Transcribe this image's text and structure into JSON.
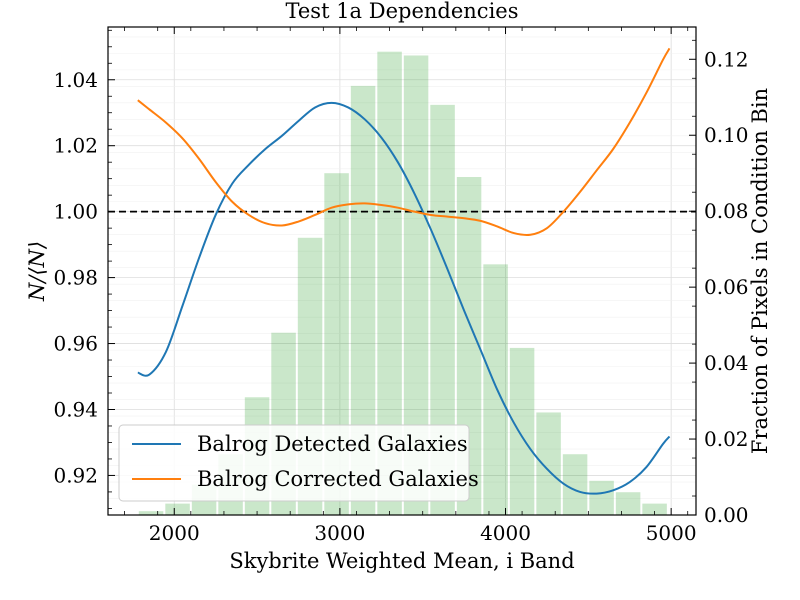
{
  "chart_data": {
    "type": "line",
    "title": "Test 1a Dependencies",
    "xlabel": "Skybrite Weighted Mean, i Band",
    "ylabel": "N/⟨N⟩",
    "ylabel_right": "Fraction of Pixels in Condition Bin",
    "xlim": [
      1600,
      5150
    ],
    "ylim": [
      0.908,
      1.056
    ],
    "ylim_right": [
      0.0,
      0.1285
    ],
    "x_ticks": [
      2000,
      3000,
      4000,
      5000
    ],
    "y_ticks": [
      0.92,
      0.94,
      0.96,
      0.98,
      1.0,
      1.02,
      1.04
    ],
    "y_ticks_right": [
      0.0,
      0.02,
      0.04,
      0.06,
      0.08,
      0.1,
      0.12
    ],
    "x_tick_labels": [
      "2000",
      "3000",
      "4000",
      "5000"
    ],
    "y_tick_labels": [
      "0.92",
      "0.94",
      "0.96",
      "0.98",
      "1.00",
      "1.02",
      "1.04"
    ],
    "y_tick_labels_right": [
      "0.00",
      "0.02",
      "0.04",
      "0.06",
      "0.08",
      "0.10",
      "0.12"
    ],
    "grid": true,
    "reference_line": {
      "y": 1.0,
      "style": "dashed",
      "color": "#000000"
    },
    "legend_position": "lower-left",
    "series": [
      {
        "name": "Balrog Detected Galaxies",
        "color": "#1f77b4",
        "x": [
          1780,
          1850,
          1950,
          2050,
          2150,
          2250,
          2350,
          2450,
          2550,
          2650,
          2750,
          2850,
          2950,
          3050,
          3150,
          3250,
          3350,
          3450,
          3550,
          3650,
          3750,
          3850,
          3950,
          4050,
          4150,
          4250,
          4350,
          4450,
          4550,
          4650,
          4750,
          4850,
          4950,
          4990
        ],
        "y": [
          0.9512,
          0.9506,
          0.9575,
          0.9715,
          0.986,
          0.999,
          1.0085,
          1.0142,
          1.019,
          1.023,
          1.0275,
          1.0316,
          1.033,
          1.0316,
          1.028,
          1.0225,
          1.015,
          1.0055,
          0.9945,
          0.9825,
          0.97,
          0.958,
          0.946,
          0.936,
          0.928,
          0.922,
          0.9175,
          0.915,
          0.9145,
          0.9155,
          0.918,
          0.9225,
          0.9295,
          0.9318
        ]
      },
      {
        "name": "Balrog Corrected Galaxies",
        "color": "#ff7f0e",
        "x": [
          1780,
          1850,
          1950,
          2050,
          2150,
          2250,
          2350,
          2450,
          2550,
          2650,
          2750,
          2850,
          2950,
          3050,
          3150,
          3250,
          3350,
          3450,
          3550,
          3650,
          3750,
          3850,
          3950,
          4050,
          4150,
          4250,
          4350,
          4450,
          4550,
          4650,
          4750,
          4850,
          4950,
          4990
        ],
        "y": [
          1.0338,
          1.031,
          1.027,
          1.0222,
          1.016,
          1.009,
          1.003,
          0.999,
          0.9965,
          0.9958,
          0.997,
          0.999,
          1.0012,
          1.0022,
          1.0025,
          1.002,
          1.0012,
          1.0,
          0.999,
          0.9985,
          0.998,
          0.9972,
          0.9955,
          0.9935,
          0.993,
          0.995,
          1.0,
          1.006,
          1.0125,
          1.019,
          1.027,
          1.036,
          1.046,
          1.0495
        ]
      }
    ],
    "histogram": {
      "color": "#2ca02c",
      "opacity": 0.25,
      "axis": "right",
      "bin_edges": [
        1780,
        1940,
        2100,
        2260,
        2420,
        2580,
        2740,
        2900,
        3060,
        3220,
        3380,
        3540,
        3700,
        3860,
        4020,
        4180,
        4340,
        4500,
        4660,
        4820,
        4980
      ],
      "values": [
        0.001,
        0.003,
        0.008,
        0.016,
        0.031,
        0.048,
        0.073,
        0.09,
        0.113,
        0.122,
        0.121,
        0.108,
        0.089,
        0.066,
        0.044,
        0.027,
        0.016,
        0.009,
        0.006,
        0.003
      ]
    }
  }
}
